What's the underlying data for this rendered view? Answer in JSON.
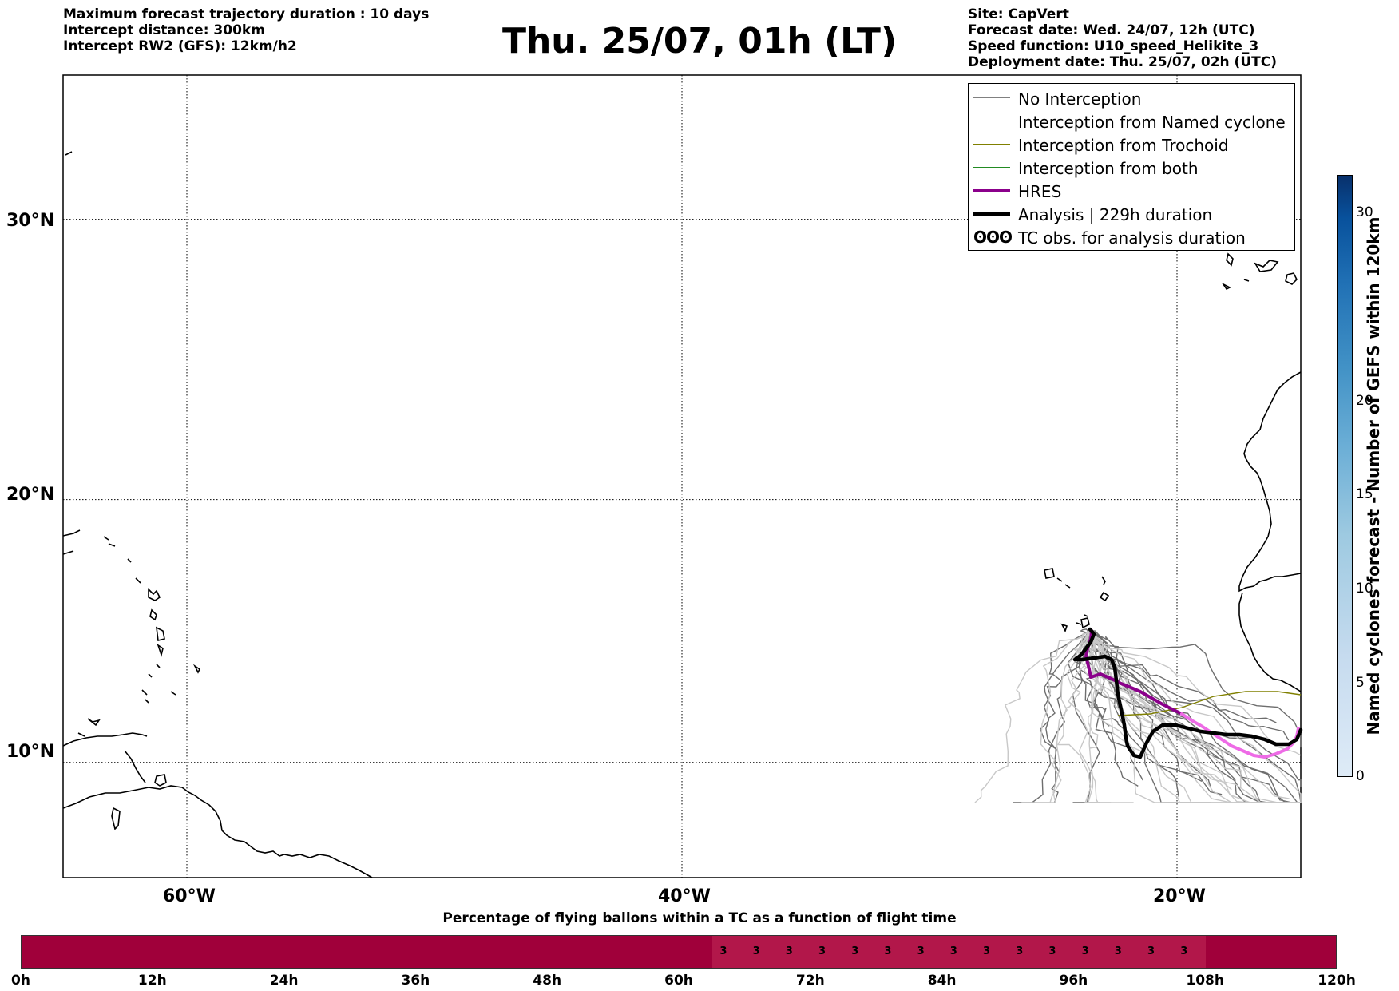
{
  "header": {
    "left_lines": [
      "Maximum forecast trajectory duration : 10 days",
      "Intercept distance: 300km",
      "Intercept RW2 (GFS):  12km/h2"
    ],
    "title": "Thu. 25/07, 01h (LT)",
    "right_lines": [
      "Site: CapVert",
      "Forecast date: Wed. 24/07, 12h (UTC)",
      "Speed function: U10_speed_Helikite_3",
      "Deployment date: Thu. 25/07, 02h (UTC)"
    ]
  },
  "map": {
    "lat_labels": [
      "30°N",
      "20°N",
      "10°N"
    ],
    "lon_labels": [
      "60°W",
      "40°W",
      "20°W"
    ],
    "lat_values": [
      30,
      20,
      10
    ],
    "lon_values": [
      -60,
      -40,
      -20
    ],
    "extent": {
      "lon_min": -65,
      "lon_max": -15,
      "lat_min": 5.5,
      "lat_max": 34.8
    }
  },
  "legend": {
    "items": [
      {
        "label": "No Interception",
        "color": "#808080",
        "style": "thin"
      },
      {
        "label": "Interception from Named cyclone",
        "color": "#ff7f50",
        "style": "thin"
      },
      {
        "label": "Interception from Trochoid",
        "color": "#808000",
        "style": "thin"
      },
      {
        "label": "Interception from both",
        "color": "#228b22",
        "style": "thin"
      },
      {
        "label": "HRES",
        "color": "#8b008b",
        "style": "thick"
      },
      {
        "label": "Analysis | 229h duration",
        "color": "#000000",
        "style": "thick"
      },
      {
        "label": "TC obs. for analysis duration",
        "color": "#000000",
        "style": "symbol",
        "symbol": "ʘʘʘ"
      }
    ]
  },
  "colorbar": {
    "label": "Named cyclones forecast - Number of GEFS within 120km",
    "ticks": [
      "0",
      "5",
      "10",
      "15",
      "20",
      "30"
    ],
    "tick_values": [
      0,
      5,
      10,
      15,
      20,
      30
    ],
    "max": 32,
    "colors": [
      "#deebf7",
      "#c6dbef",
      "#9ecae1",
      "#6baed6",
      "#4292c6",
      "#2171b5",
      "#08519c",
      "#08306b"
    ]
  },
  "timeline": {
    "title": "Percentage of flying ballons within a TC as a function of flight time",
    "ticks": [
      "0h",
      "12h",
      "24h",
      "36h",
      "48h",
      "60h",
      "72h",
      "84h",
      "96h",
      "108h",
      "120h"
    ],
    "max_hours": 120,
    "highlight_start_h": 63,
    "highlight_end_h": 108,
    "value_hours": [
      64,
      67,
      70,
      73,
      76,
      79,
      82,
      85,
      88,
      91,
      94,
      97,
      100,
      103,
      106
    ],
    "values": [
      "3",
      "3",
      "3",
      "3",
      "3",
      "3",
      "3",
      "3",
      "3",
      "3",
      "3",
      "3",
      "3",
      "3",
      "3"
    ],
    "colors": {
      "bar": "#a0003a",
      "highlight": "#b2174a"
    }
  }
}
